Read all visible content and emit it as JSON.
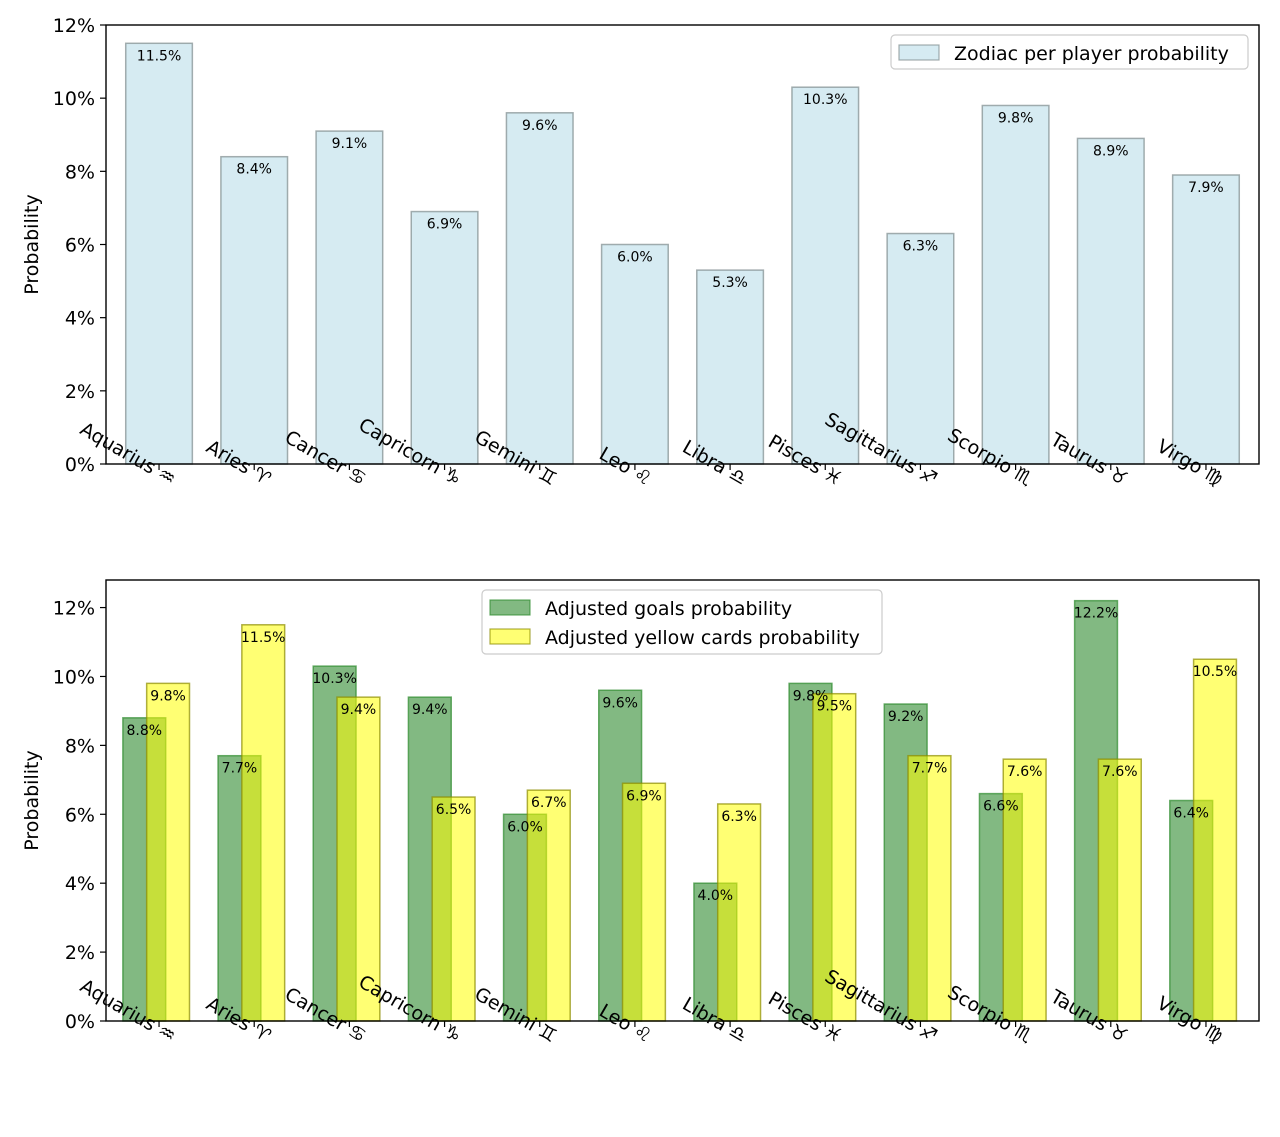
{
  "colors": {
    "zodiac_fill": "#add8e6",
    "zodiac_edge": "#7f8c8d",
    "goals_fill": "#2e8b2e",
    "yellow_fill": "#ffff00",
    "yellow_edge": "#8b8b00"
  },
  "chart_data": [
    {
      "type": "bar",
      "categories": [
        "Aquarius ♒",
        "Aries ♈",
        "Cancer ♋",
        "Capricorn ♑",
        "Gemini ♊",
        "Leo ♌",
        "Libra ♎",
        "Pisces ♓",
        "Sagittarius ♐",
        "Scorpio ♏",
        "Taurus ♉",
        "Virgo ♍"
      ],
      "series": [
        {
          "name": "Zodiac per player probability",
          "values": [
            11.5,
            8.4,
            9.1,
            6.9,
            9.6,
            6.0,
            5.3,
            10.3,
            6.3,
            9.8,
            8.9,
            7.9
          ],
          "labels": [
            "11.5%",
            "8.4%",
            "9.1%",
            "6.9%",
            "9.6%",
            "6.0%",
            "5.3%",
            "10.3%",
            "6.3%",
            "9.8%",
            "8.9%",
            "7.9%"
          ]
        }
      ],
      "xlabel": "",
      "ylabel": "Probability",
      "ylim": [
        0,
        12
      ],
      "yticks": [
        "0%",
        "2%",
        "4%",
        "6%",
        "8%",
        "10%",
        "12%"
      ],
      "legend": "top-right",
      "grid": false
    },
    {
      "type": "bar",
      "categories": [
        "Aquarius ♒",
        "Aries ♈",
        "Cancer ♋",
        "Capricorn ♑",
        "Gemini ♊",
        "Leo ♌",
        "Libra ♎",
        "Pisces ♓",
        "Sagittarius ♐",
        "Scorpio ♏",
        "Taurus ♉",
        "Virgo ♍"
      ],
      "series": [
        {
          "name": "Adjusted goals probability",
          "values": [
            8.8,
            7.7,
            10.3,
            9.4,
            6.0,
            9.6,
            4.0,
            9.8,
            9.2,
            6.6,
            12.2,
            6.4
          ],
          "labels": [
            "8.8%",
            "7.7%",
            "10.3%",
            "9.4%",
            "6.0%",
            "9.6%",
            "4.0%",
            "9.8%",
            "9.2%",
            "6.6%",
            "12.2%",
            "6.4%"
          ]
        },
        {
          "name": "Adjusted yellow cards probability",
          "values": [
            9.8,
            11.5,
            9.4,
            6.5,
            6.7,
            6.9,
            6.3,
            9.5,
            7.7,
            7.6,
            7.6,
            10.5
          ],
          "labels": [
            "9.8%",
            "11.5%",
            "9.4%",
            "6.5%",
            "6.7%",
            "6.9%",
            "6.3%",
            "9.5%",
            "7.7%",
            "7.6%",
            "7.6%",
            "10.5%"
          ]
        }
      ],
      "xlabel": "",
      "ylabel": "Probability",
      "ylim": [
        0,
        12.8
      ],
      "yticks": [
        "0%",
        "2%",
        "4%",
        "6%",
        "8%",
        "10%",
        "12%"
      ],
      "legend": "top-center",
      "grid": false
    }
  ]
}
